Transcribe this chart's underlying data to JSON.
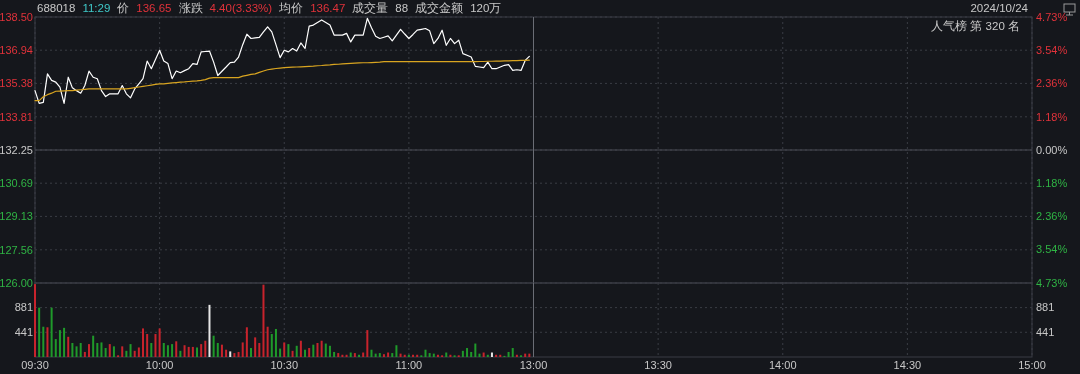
{
  "chart_data": [
    {
      "type": "line",
      "title": "688018 11:29 价 136.65 涨跌 4.40(3.33%) 均价 136.47 成交量 88 成交金额 120万",
      "annotations": [
        "2024/10/24",
        "人气榜 第 320 名"
      ],
      "categories": [
        "09:30",
        null,
        null,
        null,
        null,
        null,
        null,
        null,
        null,
        null,
        null,
        null,
        null,
        null,
        null,
        null,
        null,
        null,
        null,
        null,
        null,
        null,
        null,
        null,
        null,
        null,
        null,
        null,
        null,
        null,
        "10:00",
        null,
        null,
        null,
        null,
        null,
        null,
        null,
        null,
        null,
        null,
        null,
        null,
        null,
        null,
        null,
        null,
        null,
        null,
        null,
        null,
        null,
        null,
        null,
        null,
        null,
        null,
        null,
        null,
        null,
        "10:30",
        null,
        null,
        null,
        null,
        null,
        null,
        null,
        null,
        null,
        null,
        null,
        null,
        null,
        null,
        null,
        null,
        null,
        null,
        null,
        null,
        null,
        null,
        null,
        null,
        null,
        null,
        null,
        null,
        null,
        "11:00",
        null,
        null,
        null,
        null,
        null,
        null,
        null,
        null,
        null,
        null,
        null,
        null,
        null,
        null,
        null,
        null,
        null,
        null,
        null,
        null,
        null,
        null,
        null,
        null,
        null,
        null,
        null,
        null,
        null,
        "13:00",
        null,
        null,
        null,
        null,
        null,
        null,
        null,
        null,
        null,
        null,
        null,
        null,
        null,
        null,
        null,
        null,
        null,
        null,
        null,
        null,
        null,
        null,
        null,
        null,
        null,
        null,
        null,
        null,
        null,
        "13:30",
        null,
        null,
        null,
        null,
        null,
        null,
        null,
        null,
        null,
        null,
        null,
        null,
        null,
        null,
        null,
        null,
        null,
        null,
        null,
        null,
        null,
        null,
        null,
        null,
        null,
        null,
        null,
        null,
        null,
        "14:00",
        null,
        null,
        null,
        null,
        null,
        null,
        null,
        null,
        null,
        null,
        null,
        null,
        null,
        null,
        null,
        null,
        null,
        null,
        null,
        null,
        null,
        null,
        null,
        null,
        null,
        null,
        null,
        null,
        null,
        "14:30",
        null,
        null,
        null,
        null,
        null,
        null,
        null,
        null,
        null,
        null,
        null,
        null,
        null,
        null,
        null,
        null,
        null,
        null,
        null,
        null,
        null,
        null,
        null,
        null,
        null,
        null,
        null,
        null,
        null,
        "15:00"
      ],
      "ylim": [
        126,
        138.5
      ],
      "yticks": [
        {
          "value": 126,
          "label": "126.00"
        },
        127.56,
        129.13,
        130.69,
        132.25,
        133.81,
        135.38,
        136.94,
        {
          "value": 138.5,
          "label": "138.50"
        }
      ],
      "y2lim": [
        -4.73,
        4.73
      ],
      "y2ticks": [
        {
          "value": -4.73,
          "label": "4.73%"
        },
        {
          "value": -3.54,
          "label": "3.54%"
        },
        {
          "value": -2.36,
          "label": "2.36%"
        },
        {
          "value": -1.18,
          "label": "1.18%"
        },
        {
          "value": 0,
          "label": "0.00%"
        },
        {
          "value": 1.18,
          "label": "1.18%"
        },
        {
          "value": 2.36,
          "label": "2.36%"
        },
        {
          "value": 3.54,
          "label": "3.54%"
        },
        {
          "value": 4.73,
          "label": "4.73%"
        }
      ],
      "tick_labels": "y",
      "grid": true,
      "ref_lines": [
        {
          "axis": "y",
          "value": 132.25,
          "color": "#4a4d55"
        },
        {
          "axis": "x",
          "value": "13:00",
          "color": "#6a6d75"
        }
      ],
      "series": [
        {
          "color": "#ffffff",
          "values": [
            135.04,
            134.44,
            134.49,
            135.83,
            135.52,
            135.44,
            135.2,
            134.44,
            135.67,
            135.17,
            135.04,
            134.92,
            135.28,
            135.96,
            135.67,
            135.6,
            135.04,
            134.76,
            134.89,
            134.89,
            134.89,
            135.28,
            134.89,
            134.7,
            135.12,
            135.36,
            135.6,
            136.43,
            136.07,
            136.5,
            136.94,
            136.43,
            136.31,
            135.6,
            135.96,
            135.88,
            135.98,
            136.07,
            136.31,
            136.27,
            136.86,
            136.88,
            136.9,
            136.38,
            135.75,
            135.95,
            136.15,
            136.36,
            136.38,
            136.62,
            137.2,
            137.69,
            137.49,
            137.52,
            137.54,
            137.8,
            138.04,
            137.8,
            137.2,
            136.59,
            136.94,
            136.86,
            137.02,
            136.9,
            137.28,
            137.02,
            138.07,
            138.12,
            138.24,
            138.36,
            138.24,
            138.12,
            137.65,
            137.65,
            137.65,
            137.73,
            137.33,
            137.65,
            137.65,
            137.65,
            138.44,
            138,
            137.6,
            137.49,
            137.55,
            137.61,
            137.38,
            137.65,
            137.92,
            137.7,
            137.49,
            137.68,
            137.88,
            137.92,
            137.96,
            137.85,
            137.25,
            137.49,
            137.88,
            137.17,
            137.49,
            137.25,
            137.41,
            136.78,
            136.7,
            136.62,
            136.18,
            136.15,
            136.12,
            136.38,
            136.07,
            136.07,
            136.15,
            136.23,
            136.26,
            135.99,
            136.02,
            135.99,
            136.46,
            136.65,
            null,
            null,
            null,
            null,
            null,
            null,
            null,
            null,
            null,
            null,
            null,
            null,
            null,
            null,
            null,
            null,
            null,
            null,
            null,
            null,
            null,
            null,
            null,
            null,
            null,
            null,
            null,
            null,
            null,
            null,
            null,
            null,
            null,
            null,
            null,
            null,
            null,
            null,
            null,
            null,
            null,
            null,
            null,
            null,
            null,
            null,
            null,
            null,
            null,
            null,
            null,
            null,
            null,
            null,
            null,
            null,
            null,
            null,
            null,
            null,
            null,
            null,
            null,
            null,
            null,
            null,
            null,
            null,
            null,
            null,
            null,
            null,
            null,
            null,
            null,
            null,
            null,
            null,
            null,
            null,
            null,
            null,
            null,
            null,
            null,
            null,
            null,
            null,
            null,
            null,
            null,
            null,
            null,
            null,
            null,
            null,
            null,
            null,
            null,
            null,
            null,
            null,
            null,
            null,
            null,
            null,
            null,
            null,
            null,
            null,
            null,
            null,
            null,
            null,
            null,
            null,
            null,
            null,
            null,
            null,
            null
          ]
        },
        {
          "color": "#d9a520",
          "values": [
            134.57,
            134.57,
            134.75,
            134.85,
            134.92,
            135.01,
            135.02,
            135.03,
            135.04,
            135.04,
            135.06,
            135.08,
            135.1,
            135.12,
            135.12,
            135.12,
            135.12,
            135.12,
            135.12,
            135.12,
            135.12,
            135.12,
            135.12,
            135.15,
            135.18,
            135.21,
            135.24,
            135.27,
            135.3,
            135.33,
            135.36,
            135.36,
            135.38,
            135.4,
            135.42,
            135.44,
            135.45,
            135.47,
            135.49,
            135.5,
            135.52,
            135.56,
            135.63,
            135.65,
            135.65,
            135.65,
            135.65,
            135.65,
            135.65,
            135.65,
            135.72,
            135.76,
            135.8,
            135.83,
            135.9,
            135.96,
            136.02,
            136.05,
            136.08,
            136.1,
            136.12,
            136.13,
            136.14,
            136.15,
            136.16,
            136.17,
            136.18,
            136.19,
            136.21,
            136.22,
            136.24,
            136.25,
            136.27,
            136.28,
            136.3,
            136.31,
            136.32,
            136.33,
            136.34,
            136.35,
            136.35,
            136.36,
            136.37,
            136.38,
            136.4,
            136.4,
            136.4,
            136.4,
            136.4,
            136.4,
            136.4,
            136.4,
            136.4,
            136.4,
            136.4,
            136.4,
            136.4,
            136.4,
            136.4,
            136.4,
            136.4,
            136.4,
            136.4,
            136.4,
            136.4,
            136.4,
            136.4,
            136.41,
            136.41,
            136.42,
            136.42,
            136.43,
            136.43,
            136.44,
            136.44,
            136.45,
            136.45,
            136.46,
            136.46,
            136.47,
            null,
            null,
            null,
            null,
            null,
            null,
            null,
            null,
            null,
            null,
            null,
            null,
            null,
            null,
            null,
            null,
            null,
            null,
            null,
            null,
            null,
            null,
            null,
            null,
            null,
            null,
            null,
            null,
            null,
            null,
            null,
            null,
            null,
            null,
            null,
            null,
            null,
            null,
            null,
            null,
            null,
            null,
            null,
            null,
            null,
            null,
            null,
            null,
            null,
            null,
            null,
            null,
            null,
            null,
            null,
            null,
            null,
            null,
            null,
            null,
            null,
            null,
            null,
            null,
            null,
            null,
            null,
            null,
            null,
            null,
            null,
            null,
            null,
            null,
            null,
            null,
            null,
            null,
            null,
            null,
            null,
            null,
            null,
            null,
            null,
            null,
            null,
            null,
            null,
            null,
            null,
            null,
            null,
            null,
            null,
            null,
            null,
            null,
            null,
            null,
            null,
            null,
            null,
            null,
            null,
            null,
            null,
            null,
            null,
            null,
            null,
            null,
            null,
            null,
            null,
            null,
            null,
            null,
            null,
            null,
            null
          ]
        }
      ]
    },
    {
      "type": "bar",
      "categories": [
        "09:30",
        null,
        null,
        null,
        null,
        null,
        null,
        null,
        null,
        null,
        null,
        null,
        null,
        null,
        null,
        null,
        null,
        null,
        null,
        null,
        null,
        null,
        null,
        null,
        null,
        null,
        null,
        null,
        null,
        null,
        "10:00",
        null,
        null,
        null,
        null,
        null,
        null,
        null,
        null,
        null,
        null,
        null,
        null,
        null,
        null,
        null,
        null,
        null,
        null,
        null,
        null,
        null,
        null,
        null,
        null,
        null,
        null,
        null,
        null,
        null,
        "10:30",
        null,
        null,
        null,
        null,
        null,
        null,
        null,
        null,
        null,
        null,
        null,
        null,
        null,
        null,
        null,
        null,
        null,
        null,
        null,
        null,
        null,
        null,
        null,
        null,
        null,
        null,
        null,
        null,
        null,
        "11:00",
        null,
        null,
        null,
        null,
        null,
        null,
        null,
        null,
        null,
        null,
        null,
        null,
        null,
        null,
        null,
        null,
        null,
        null,
        null,
        null,
        null,
        null,
        null,
        null,
        null,
        null,
        null,
        null,
        null,
        "13:00",
        null,
        null,
        null,
        null,
        null,
        null,
        null,
        null,
        null,
        null,
        null,
        null,
        null,
        null,
        null,
        null,
        null,
        null,
        null,
        null,
        null,
        null,
        null,
        null,
        null,
        null,
        null,
        null,
        null,
        "13:30",
        null,
        null,
        null,
        null,
        null,
        null,
        null,
        null,
        null,
        null,
        null,
        null,
        null,
        null,
        null,
        null,
        null,
        null,
        null,
        null,
        null,
        null,
        null,
        null,
        null,
        null,
        null,
        null,
        null,
        "14:00",
        null,
        null,
        null,
        null,
        null,
        null,
        null,
        null,
        null,
        null,
        null,
        null,
        null,
        null,
        null,
        null,
        null,
        null,
        null,
        null,
        null,
        null,
        null,
        null,
        null,
        null,
        null,
        null,
        null,
        "14:30",
        null,
        null,
        null,
        null,
        null,
        null,
        null,
        null,
        null,
        null,
        null,
        null,
        null,
        null,
        null,
        null,
        null,
        null,
        null,
        null,
        null,
        null,
        null,
        null,
        null,
        null,
        null,
        null,
        null,
        "15:00"
      ],
      "ylim": [
        0,
        1320
      ],
      "yticks": [
        441,
        881
      ],
      "y2lim": [
        0,
        1320
      ],
      "y2ticks": [
        441,
        881
      ],
      "grid": true,
      "ref_lines": [
        {
          "axis": "x",
          "value": "13:00",
          "color": "#6a6d75"
        }
      ],
      "values": [
        1300,
        880,
        540,
        530,
        880,
        320,
        480,
        520,
        360,
        250,
        190,
        250,
        90,
        230,
        380,
        250,
        260,
        160,
        230,
        190,
        30,
        190,
        110,
        230,
        110,
        170,
        510,
        410,
        250,
        410,
        510,
        250,
        210,
        230,
        280,
        110,
        210,
        180,
        180,
        170,
        230,
        290,
        930,
        380,
        250,
        220,
        130,
        100,
        70,
        90,
        260,
        530,
        160,
        350,
        250,
        1290,
        540,
        410,
        500,
        150,
        260,
        230,
        110,
        200,
        290,
        130,
        160,
        220,
        250,
        290,
        240,
        200,
        90,
        70,
        40,
        40,
        80,
        70,
        40,
        80,
        480,
        130,
        60,
        70,
        50,
        80,
        70,
        210,
        60,
        40,
        40,
        40,
        40,
        30,
        130,
        70,
        60,
        40,
        30,
        80,
        40,
        30,
        30,
        110,
        160,
        90,
        240,
        60,
        80,
        40,
        80,
        40,
        40,
        20,
        90,
        160,
        40,
        30,
        60,
        60,
        null,
        null,
        null,
        null,
        null,
        null,
        null,
        null,
        null,
        null,
        null,
        null,
        null,
        null,
        null,
        null,
        null,
        null,
        null,
        null,
        null,
        null,
        null,
        null,
        null,
        null,
        null,
        null,
        null,
        null,
        null,
        null,
        null,
        null,
        null,
        null,
        null,
        null,
        null,
        null,
        null,
        null,
        null,
        null,
        null,
        null,
        null,
        null,
        null,
        null,
        null,
        null,
        null,
        null,
        null,
        null,
        null,
        null,
        null,
        null,
        null,
        null,
        null,
        null,
        null,
        null,
        null,
        null,
        null,
        null,
        null,
        null,
        null,
        null,
        null,
        null,
        null,
        null,
        null,
        null,
        null,
        null,
        null,
        null,
        null,
        null,
        null,
        null,
        null,
        null,
        null,
        null,
        null,
        null,
        null,
        null,
        null,
        null,
        null,
        null,
        null,
        null,
        null,
        null,
        null,
        null,
        null,
        null,
        null,
        null,
        null,
        null,
        null,
        null,
        null,
        null,
        null,
        null,
        null,
        null,
        null
      ],
      "colors": [
        "#c8232c",
        "#1f9a2a",
        "#1f9a2a",
        "#c8232c",
        "#1f9a2a",
        "#1f9a2a",
        "#1f9a2a",
        "#1f9a2a",
        "#c8232c",
        "#1f9a2a",
        "#1f9a2a",
        "#1f9a2a",
        "#c8232c",
        "#c8232c",
        "#1f9a2a",
        "#1f9a2a",
        "#1f9a2a",
        "#1f9a2a",
        "#c8232c",
        "#1f9a2a",
        "#c8232c",
        "#c8232c",
        "#1f9a2a",
        "#1f9a2a",
        "#c8232c",
        "#c8232c",
        "#c8232c",
        "#c8232c",
        "#1f9a2a",
        "#c8232c",
        "#c8232c",
        "#1f9a2a",
        "#1f9a2a",
        "#1f9a2a",
        "#c8232c",
        "#1f9a2a",
        "#c8232c",
        "#c8232c",
        "#c8232c",
        "#1f9a2a",
        "#c8232c",
        "#c8232c",
        "#e6e6e6",
        "#1f9a2a",
        "#1f9a2a",
        "#c8232c",
        "#c8232c",
        "#e6e6e6",
        "#c8232c",
        "#c8232c",
        "#c8232c",
        "#c8232c",
        "#1f9a2a",
        "#c8232c",
        "#c8232c",
        "#c8232c",
        "#c8232c",
        "#1f9a2a",
        "#1f9a2a",
        "#1f9a2a",
        "#c8232c",
        "#1f9a2a",
        "#c8232c",
        "#1f9a2a",
        "#c8232c",
        "#1f9a2a",
        "#c8232c",
        "#1f9a2a",
        "#c8232c",
        "#c8232c",
        "#1f9a2a",
        "#1f9a2a",
        "#1f9a2a",
        "#c8232c",
        "#c8232c",
        "#c8232c",
        "#1f9a2a",
        "#c8232c",
        "#1f9a2a",
        "#c8232c",
        "#c8232c",
        "#1f9a2a",
        "#1f9a2a",
        "#1f9a2a",
        "#c8232c",
        "#c8232c",
        "#1f9a2a",
        "#1f9a2a",
        "#c8232c",
        "#c8232c",
        "#1f9a2a",
        "#c8232c",
        "#c8232c",
        "#1f9a2a",
        "#1f9a2a",
        "#1f9a2a",
        "#1f9a2a",
        "#c8232c",
        "#c8232c",
        "#1f9a2a",
        "#c8232c",
        "#1f9a2a",
        "#c8232c",
        "#1f9a2a",
        "#1f9a2a",
        "#1f9a2a",
        "#1f9a2a",
        "#1f9a2a",
        "#c8232c",
        "#1f9a2a",
        "#e6e6e6",
        "#c8232c",
        "#c8232c",
        "#1f9a2a",
        "#1f9a2a",
        "#1f9a2a",
        "#c8232c",
        "#1f9a2a",
        "#c8232c",
        "#c8232c",
        null,
        null,
        null,
        null,
        null,
        null,
        null,
        null,
        null,
        null,
        null,
        null,
        null,
        null,
        null,
        null,
        null,
        null,
        null,
        null,
        null,
        null,
        null,
        null,
        null,
        null,
        null,
        null,
        null,
        null,
        null,
        null,
        null,
        null,
        null,
        null,
        null,
        null,
        null,
        null,
        null,
        null,
        null,
        null,
        null,
        null,
        null,
        null,
        null,
        null,
        null,
        null,
        null,
        null,
        null,
        null,
        null,
        null,
        null,
        null,
        null,
        null,
        null,
        null,
        null,
        null,
        null,
        null,
        null,
        null,
        null,
        null,
        null,
        null,
        null,
        null,
        null,
        null,
        null,
        null,
        null,
        null,
        null,
        null,
        null,
        null,
        null,
        null,
        null,
        null,
        null,
        null,
        null,
        null,
        null,
        null,
        null,
        null,
        null,
        null,
        null,
        null,
        null,
        null,
        null,
        null,
        null,
        null,
        null,
        null,
        null,
        null,
        null,
        null,
        null,
        null,
        null,
        null,
        null,
        null,
        null
      ]
    }
  ]
}
